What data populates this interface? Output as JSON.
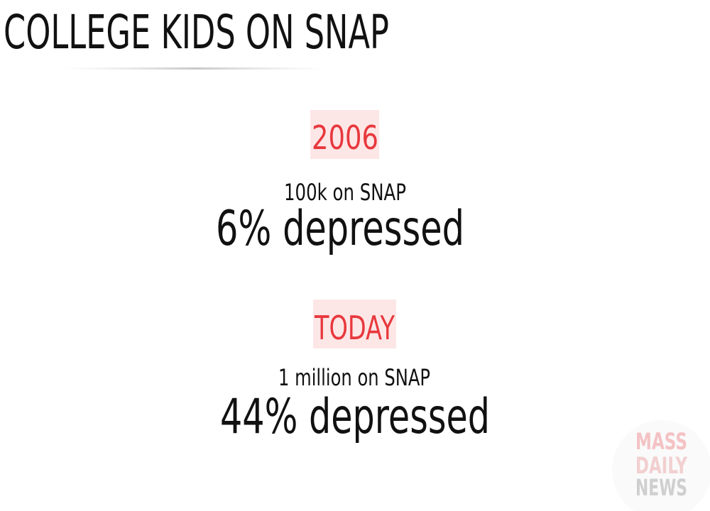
{
  "title": "COLLEGE KIDS ON SNAP",
  "sections": [
    {
      "label": "2006",
      "count": "100k on SNAP",
      "stat": "6% depressed"
    },
    {
      "label": "TODAY",
      "count": "1 million on SNAP",
      "stat": "44% depressed"
    }
  ],
  "watermark": {
    "lines": [
      "MASS",
      "DAILY",
      "NEWS"
    ]
  }
}
